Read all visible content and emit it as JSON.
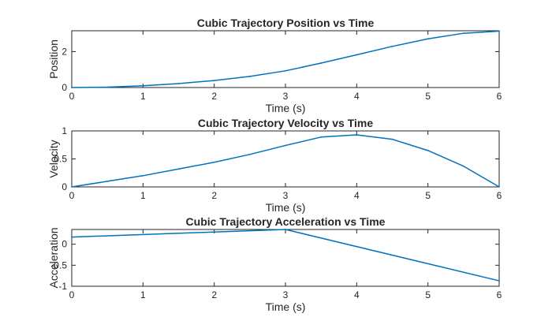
{
  "chart_data": [
    {
      "type": "line",
      "title": "Cubic Trajectory Position vs Time",
      "xlabel": "Time (s)",
      "ylabel": "Position",
      "xlim": [
        0,
        6
      ],
      "ylim": [
        0,
        3.16
      ],
      "xticks": [
        0,
        1,
        2,
        3,
        4,
        5,
        6
      ],
      "yticks": [
        0,
        2
      ],
      "grid": false,
      "color": "#0072BD",
      "series": [
        {
          "x": [
            0,
            0.5,
            1,
            1.5,
            2,
            2.5,
            3,
            3.5,
            4,
            4.5,
            5,
            5.5,
            6
          ],
          "values": [
            0,
            0.02,
            0.1,
            0.22,
            0.39,
            0.62,
            0.93,
            1.36,
            1.82,
            2.29,
            2.71,
            3.02,
            3.14
          ]
        }
      ]
    },
    {
      "type": "line",
      "title": "Cubic Trajectory Velocity vs Time",
      "xlabel": "Time (s)",
      "ylabel": "Velocity",
      "xlim": [
        0,
        6
      ],
      "ylim": [
        0,
        1
      ],
      "xticks": [
        0,
        1,
        2,
        3,
        4,
        5,
        6
      ],
      "yticks": [
        0,
        0.5,
        1
      ],
      "grid": false,
      "color": "#0072BD",
      "series": [
        {
          "x": [
            0,
            0.5,
            1,
            1.5,
            2,
            2.5,
            3,
            3.5,
            4,
            4.5,
            5,
            5.5,
            6
          ],
          "values": [
            0,
            0.1,
            0.2,
            0.32,
            0.44,
            0.58,
            0.74,
            0.89,
            0.93,
            0.85,
            0.65,
            0.37,
            0
          ]
        }
      ]
    },
    {
      "type": "line",
      "title": "Cubic Trajectory Acceleration vs Time",
      "xlabel": "Time (s)",
      "ylabel": "Acceleration",
      "xlim": [
        0,
        6
      ],
      "ylim": [
        -1,
        0.35
      ],
      "xticks": [
        0,
        1,
        2,
        3,
        4,
        5,
        6
      ],
      "yticks": [
        -1,
        -0.5,
        0
      ],
      "grid": false,
      "color": "#0072BD",
      "series": [
        {
          "x": [
            0,
            3,
            6
          ],
          "values": [
            0.17,
            0.35,
            -0.87
          ]
        }
      ]
    }
  ]
}
